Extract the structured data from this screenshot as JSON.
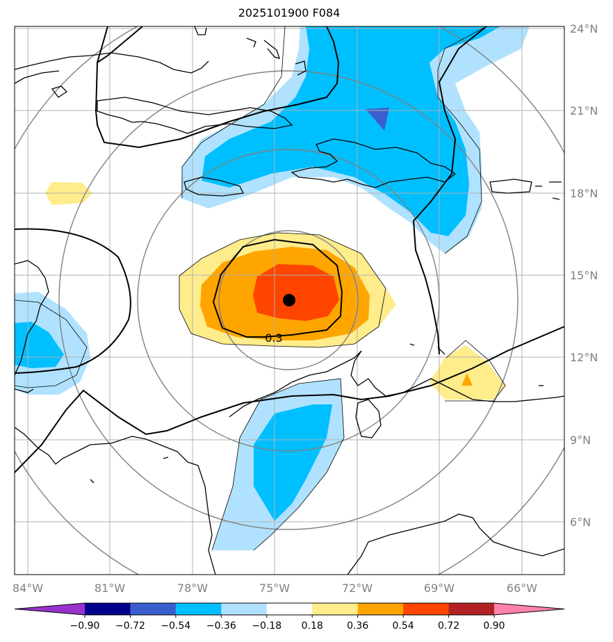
{
  "title": "2025101900 F084",
  "map": {
    "lon_labels": [
      "84°W",
      "81°W",
      "78°W",
      "75°W",
      "72°W",
      "69°W",
      "66°W"
    ],
    "lat_labels": [
      "24°N",
      "21°N",
      "18°N",
      "15°N",
      "12°N",
      "9°N",
      "6°N"
    ],
    "lon_values": [
      -84,
      -81,
      -78,
      -75,
      -72,
      -69,
      -66
    ],
    "lat_values": [
      24,
      21,
      18,
      15,
      12,
      9,
      6
    ],
    "extent": {
      "lon": [
        -84.5,
        -64.5
      ],
      "lat": [
        4,
        24
      ]
    },
    "center_marker": {
      "lon": -74.5,
      "lat": 14.0
    },
    "contour_label": "0.3",
    "grid_color": "#b0b0b0",
    "axis_label_color": "#808080"
  },
  "colorbar": {
    "ticks": [
      "−0.90",
      "−0.72",
      "−0.54",
      "−0.36",
      "−0.18",
      "0.18",
      "0.36",
      "0.54",
      "0.72",
      "0.90"
    ],
    "colors": [
      "#9932CC",
      "#00008B",
      "#3A5FCD",
      "#00BFFF",
      "#B0E2FF",
      "#FFFFFF",
      "#FFEC8B",
      "#FFA500",
      "#FF4500",
      "#B22222",
      "#FF82AB"
    ]
  }
}
